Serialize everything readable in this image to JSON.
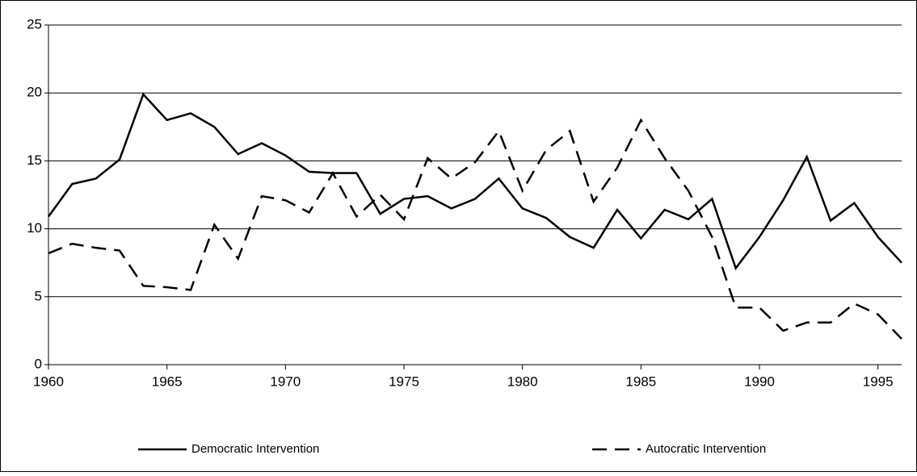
{
  "chart_data": {
    "type": "line",
    "x": [
      1960,
      1961,
      1962,
      1963,
      1964,
      1965,
      1966,
      1967,
      1968,
      1969,
      1970,
      1971,
      1972,
      1973,
      1974,
      1975,
      1976,
      1977,
      1978,
      1979,
      1980,
      1981,
      1982,
      1983,
      1984,
      1985,
      1986,
      1987,
      1988,
      1989,
      1990,
      1991,
      1992,
      1993,
      1994,
      1995,
      1996
    ],
    "series": [
      {
        "name": "Democratic Intervention",
        "color": "#000000",
        "dash": "solid",
        "values": [
          10.9,
          13.3,
          13.7,
          15.1,
          19.9,
          18.0,
          18.5,
          17.5,
          15.5,
          16.3,
          15.4,
          14.2,
          14.1,
          14.1,
          11.1,
          12.2,
          12.4,
          11.5,
          12.2,
          13.7,
          11.5,
          10.8,
          9.4,
          8.6,
          11.4,
          9.3,
          11.4,
          10.7,
          12.2,
          7.1,
          9.4,
          12.1,
          15.3,
          10.6,
          11.9,
          9.4,
          7.5
        ]
      },
      {
        "name": "Autocratic Intervention",
        "color": "#000000",
        "dash": "dashed",
        "values": [
          8.2,
          8.9,
          8.6,
          8.4,
          5.8,
          5.7,
          5.5,
          10.3,
          7.8,
          12.4,
          12.1,
          11.2,
          14.1,
          10.9,
          12.5,
          10.7,
          15.2,
          13.7,
          14.9,
          17.2,
          12.8,
          15.8,
          17.2,
          12.0,
          14.5,
          18.0,
          15.2,
          12.8,
          9.4,
          4.2,
          4.2,
          2.5,
          3.1,
          3.1,
          4.5,
          3.7,
          1.9
        ]
      }
    ],
    "xlim": [
      1960,
      1996
    ],
    "xticks": [
      1960,
      1965,
      1970,
      1975,
      1980,
      1985,
      1990,
      1995
    ],
    "ylim": [
      0,
      25
    ],
    "yticks": [
      0,
      5,
      10,
      15,
      20,
      25
    ],
    "grid": true,
    "legend": "bottom"
  }
}
